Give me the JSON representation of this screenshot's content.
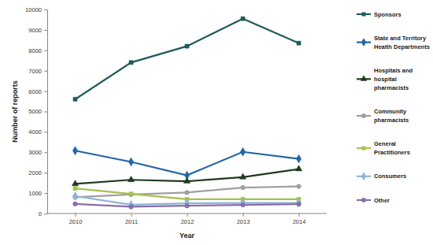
{
  "chart_data": {
    "type": "line",
    "x_label": "Year",
    "y_label": "Number of reports",
    "categories": [
      "2010",
      "2011",
      "2012",
      "2013",
      "2014"
    ],
    "series": [
      {
        "name": "Sponsors",
        "color": "#1f5c5c",
        "marker": "square",
        "values": [
          5600,
          7400,
          8200,
          9550,
          8350
        ]
      },
      {
        "name": "State and Territory Health Departments",
        "color": "#2166a8",
        "marker": "diamond",
        "values": [
          3080,
          2530,
          1870,
          3020,
          2680
        ]
      },
      {
        "name": "Hospitals and hospital pharmacists",
        "color": "#1d3b1d",
        "marker": "triangle",
        "values": [
          1450,
          1650,
          1580,
          1780,
          2180
        ]
      },
      {
        "name": "Community pharmacists",
        "color": "#a0a0a0",
        "marker": "circle",
        "values": [
          800,
          930,
          1030,
          1270,
          1330
        ]
      },
      {
        "name": "General Practitioners",
        "color": "#a6c150",
        "marker": "square",
        "values": [
          1230,
          960,
          700,
          700,
          700
        ]
      },
      {
        "name": "Consumers",
        "color": "#8fb4d9",
        "marker": "diamond",
        "values": [
          850,
          430,
          500,
          520,
          520
        ]
      },
      {
        "name": "Other",
        "color": "#8a6fa8",
        "marker": "circle",
        "values": [
          470,
          330,
          380,
          420,
          460
        ]
      }
    ],
    "ylim": [
      0,
      10000
    ],
    "yticks": [
      0,
      1000,
      2000,
      3000,
      4000,
      5000,
      6000,
      7000,
      8000,
      9000,
      10000
    ],
    "grid": false,
    "legend": "right"
  }
}
